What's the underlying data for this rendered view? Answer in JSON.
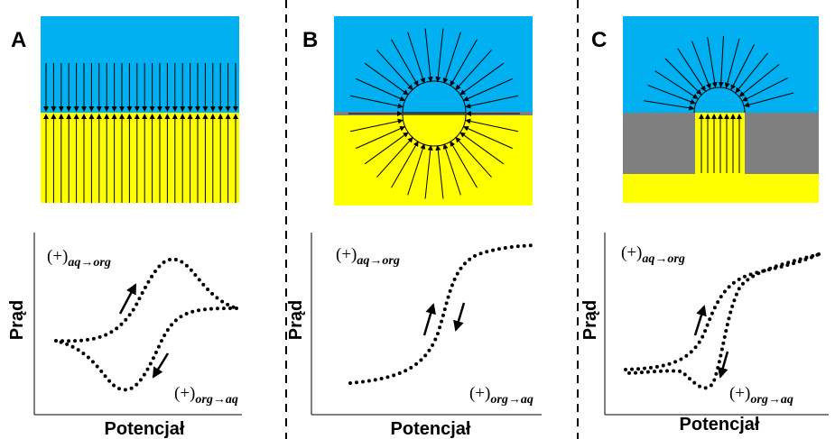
{
  "panels": [
    {
      "letter": "A",
      "y_label": "Prąd",
      "x_label": "Potencjał",
      "label_top": {
        "main": "(+)",
        "sub": "aq→org"
      },
      "label_bottom": {
        "main": "(+)",
        "sub": "org→aq"
      }
    },
    {
      "letter": "B",
      "y_label": "Prąd",
      "x_label": "Potencjał",
      "label_top": {
        "main": "(+)",
        "sub": "aq→org"
      },
      "label_bottom": {
        "main": "(+)",
        "sub": "org→aq"
      }
    },
    {
      "letter": "C",
      "y_label": "Prąd",
      "x_label": "Potencjał",
      "label_top": {
        "main": "(+)",
        "sub": "aq→org"
      },
      "label_bottom": {
        "main": "(+)",
        "sub": "org→aq"
      }
    }
  ]
}
